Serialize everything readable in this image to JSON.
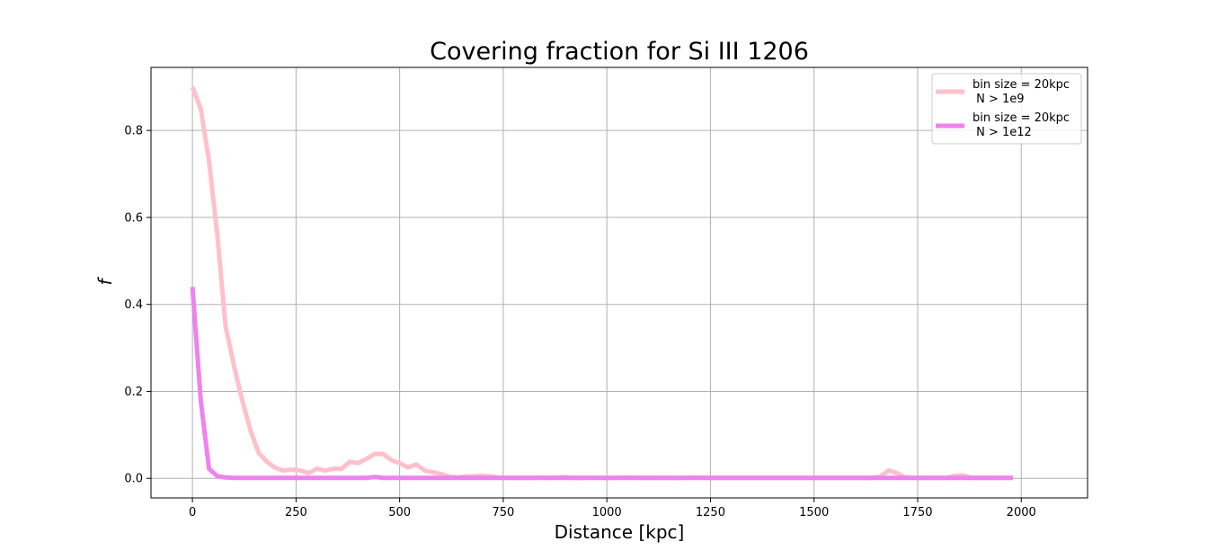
{
  "chart_data": {
    "type": "line",
    "title": "Covering fraction for Si III 1206",
    "xlabel": "Distance [kpc]",
    "ylabel": "f",
    "xlim": [
      -100,
      2160
    ],
    "ylim": [
      -0.045,
      0.945
    ],
    "xticks": [
      0,
      250,
      500,
      750,
      1000,
      1250,
      1500,
      1750,
      2000
    ],
    "yticks": [
      0.0,
      0.2,
      0.4,
      0.6,
      0.8
    ],
    "ytick_labels": [
      "0.0",
      "0.2",
      "0.4",
      "0.6",
      "0.8"
    ],
    "grid": true,
    "legend_position": "top-right",
    "series": [
      {
        "name": "bin size = 20kpc\n N > 1e9",
        "legend_lines": [
          "bin size = 20kpc",
          " N > 1e9"
        ],
        "color": "#ffc0cb",
        "x": [
          0,
          20,
          40,
          60,
          80,
          100,
          120,
          140,
          160,
          180,
          200,
          220,
          240,
          260,
          280,
          300,
          320,
          340,
          360,
          380,
          400,
          420,
          440,
          460,
          480,
          500,
          520,
          540,
          560,
          580,
          600,
          620,
          640,
          660,
          680,
          700,
          720,
          740,
          760,
          780,
          800,
          820,
          840,
          860,
          880,
          900,
          920,
          940,
          960,
          980,
          1000,
          1020,
          1040,
          1060,
          1080,
          1100,
          1120,
          1140,
          1160,
          1180,
          1200,
          1220,
          1240,
          1260,
          1280,
          1300,
          1320,
          1340,
          1360,
          1380,
          1400,
          1420,
          1440,
          1460,
          1480,
          1500,
          1520,
          1540,
          1560,
          1580,
          1600,
          1620,
          1640,
          1660,
          1680,
          1700,
          1720,
          1740,
          1760,
          1780,
          1800,
          1820,
          1840,
          1860,
          1880,
          1900,
          1920,
          1940,
          1960,
          1980
        ],
        "y": [
          0.9,
          0.85,
          0.73,
          0.56,
          0.35,
          0.26,
          0.18,
          0.11,
          0.058,
          0.038,
          0.024,
          0.018,
          0.02,
          0.018,
          0.012,
          0.022,
          0.018,
          0.022,
          0.022,
          0.038,
          0.035,
          0.045,
          0.056,
          0.056,
          0.042,
          0.035,
          0.025,
          0.032,
          0.018,
          0.014,
          0.01,
          0.004,
          0.002,
          0.004,
          0.005,
          0.006,
          0.004,
          0.002,
          0.001,
          0.001,
          0.001,
          0.001,
          0.002,
          0.001,
          0.002,
          0.003,
          0.001,
          0.001,
          0.002,
          0.001,
          0.001,
          0.001,
          0.002,
          0.002,
          0.001,
          0.001,
          0.001,
          0.001,
          0.001,
          0.001,
          0.002,
          0.002,
          0.001,
          0.001,
          0.001,
          0.001,
          0.001,
          0.001,
          0.001,
          0.001,
          0.001,
          0.001,
          0.001,
          0.001,
          0.001,
          0.001,
          0.001,
          0.001,
          0.001,
          0.001,
          0.001,
          0.001,
          0.001,
          0.004,
          0.018,
          0.012,
          0.002,
          0.001,
          0.001,
          0.001,
          0.001,
          0.001,
          0.006,
          0.007,
          0.001,
          0.001,
          0.001,
          0.001,
          0.001,
          0.001
        ]
      },
      {
        "name": "bin size = 20kpc\n N > 1e12",
        "legend_lines": [
          "bin size = 20kpc",
          " N > 1e12"
        ],
        "color": "#ee82ee",
        "x": [
          0,
          20,
          40,
          60,
          80,
          100,
          120,
          140,
          160,
          180,
          200,
          220,
          240,
          260,
          280,
          300,
          320,
          340,
          360,
          380,
          400,
          420,
          440,
          460,
          480,
          500,
          520,
          540,
          560,
          580,
          600,
          620,
          640,
          660,
          680,
          700,
          720,
          740,
          760,
          780,
          800,
          820,
          840,
          860,
          880,
          900,
          920,
          940,
          960,
          980,
          1000,
          1020,
          1040,
          1060,
          1080,
          1100,
          1120,
          1140,
          1160,
          1180,
          1200,
          1220,
          1240,
          1260,
          1280,
          1300,
          1320,
          1340,
          1360,
          1380,
          1400,
          1420,
          1440,
          1460,
          1480,
          1500,
          1520,
          1540,
          1560,
          1580,
          1600,
          1620,
          1640,
          1660,
          1680,
          1700,
          1720,
          1740,
          1760,
          1780,
          1800,
          1820,
          1840,
          1860,
          1880,
          1900,
          1920,
          1940,
          1960,
          1980
        ],
        "y": [
          0.44,
          0.18,
          0.022,
          0.005,
          0.002,
          0.001,
          0.001,
          0.001,
          0.001,
          0.001,
          0.001,
          0.001,
          0.001,
          0.001,
          0.001,
          0.001,
          0.001,
          0.001,
          0.001,
          0.001,
          0.001,
          0.001,
          0.003,
          0.001,
          0.001,
          0.001,
          0.001,
          0.001,
          0.001,
          0.001,
          0.001,
          0.001,
          0.001,
          0.001,
          0.001,
          0.001,
          0.001,
          0.001,
          0.001,
          0.001,
          0.001,
          0.001,
          0.001,
          0.001,
          0.001,
          0.001,
          0.001,
          0.001,
          0.001,
          0.001,
          0.001,
          0.001,
          0.001,
          0.001,
          0.001,
          0.001,
          0.001,
          0.001,
          0.001,
          0.001,
          0.001,
          0.001,
          0.001,
          0.001,
          0.001,
          0.001,
          0.001,
          0.001,
          0.001,
          0.001,
          0.001,
          0.001,
          0.001,
          0.001,
          0.001,
          0.001,
          0.001,
          0.001,
          0.001,
          0.001,
          0.001,
          0.001,
          0.001,
          0.001,
          0.001,
          0.001,
          0.001,
          0.001,
          0.001,
          0.001,
          0.001,
          0.001,
          0.001,
          0.001,
          0.001,
          0.001,
          0.001,
          0.001,
          0.001,
          0.001
        ]
      }
    ]
  }
}
